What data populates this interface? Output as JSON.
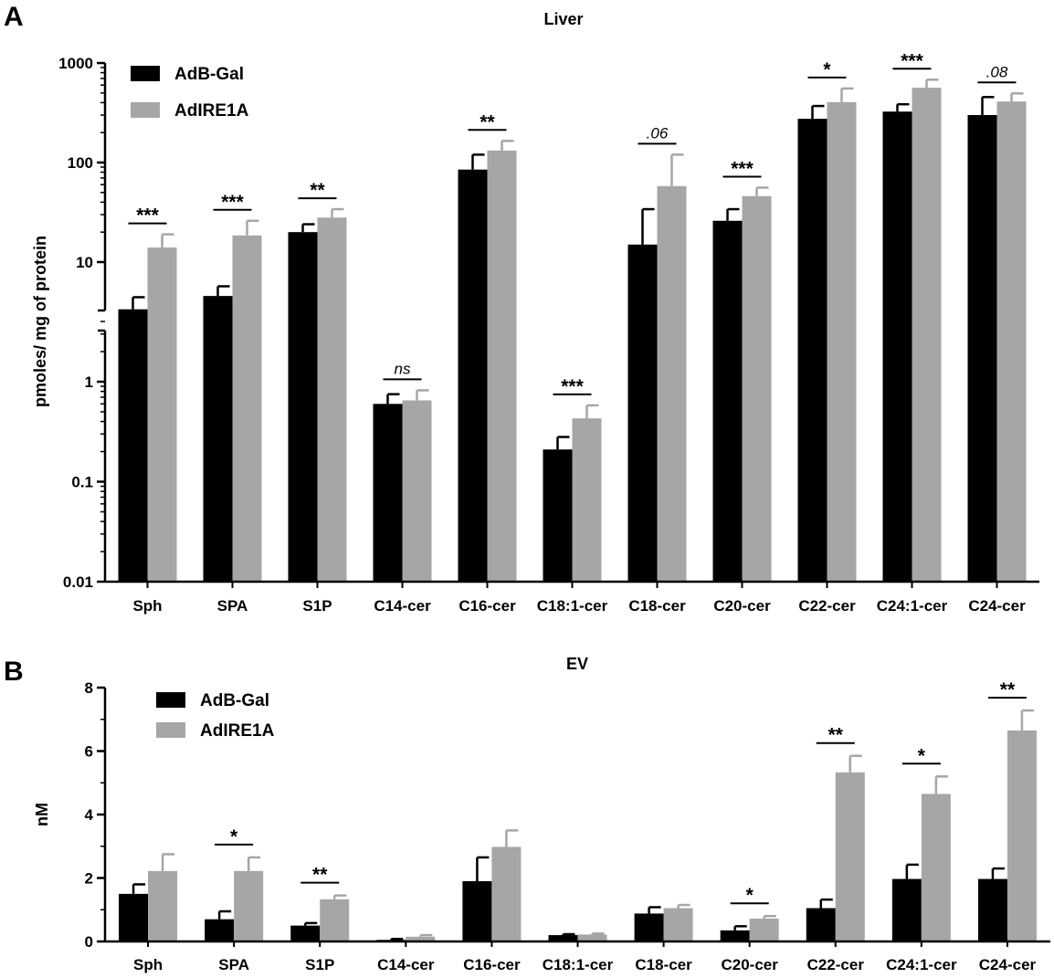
{
  "chart_data": [
    {
      "panel": "A",
      "type": "bar",
      "title": "Liver",
      "ylabel": "pmoles/ mg of protein",
      "yscale": "log",
      "ylim": [
        0.01,
        1000
      ],
      "yticks": [
        "1000",
        "100",
        "10",
        "1",
        "0.1",
        "0.01"
      ],
      "categories": [
        "Sph",
        "SPA",
        "S1P",
        "C14-cer",
        "C16-cer",
        "C18:1-cer",
        "C18-cer",
        "C20-cer",
        "C22-cer",
        "C24:1-cer",
        "C24-cer"
      ],
      "series": [
        {
          "name": "AdB-Gal",
          "color": "#000000",
          "values": [
            5.3,
            7.2,
            20,
            0.6,
            85,
            0.21,
            15,
            26,
            275,
            325,
            300
          ],
          "errors": [
            7.0,
            9.0,
            24,
            0.75,
            120,
            0.28,
            34,
            34,
            370,
            385,
            455
          ]
        },
        {
          "name": "AdIRE1A",
          "color": "#a6a6a6",
          "values": [
            14,
            18.5,
            28,
            0.65,
            132,
            0.43,
            58,
            46,
            405,
            565,
            410
          ],
          "errors": [
            19,
            26,
            34,
            0.82,
            165,
            0.58,
            120,
            56,
            555,
            680,
            495
          ]
        }
      ],
      "significance": [
        "***",
        "***",
        "**",
        "ns",
        "**",
        "***",
        ".06",
        "***",
        "*",
        "***",
        ".08"
      ],
      "italic_significance": [
        "ns",
        ".06",
        ".08"
      ],
      "legend_position": "top-left",
      "axis_break": true
    },
    {
      "panel": "B",
      "type": "bar",
      "title": "EV",
      "ylabel": "nM",
      "yscale": "linear",
      "ylim": [
        0,
        8
      ],
      "yticks": [
        "0",
        "2",
        "4",
        "6",
        "8"
      ],
      "categories": [
        "Sph",
        "SPA",
        "S1P",
        "C14-cer",
        "C16-cer",
        "C18:1-cer",
        "C18-cer",
        "C20-cer",
        "C22-cer",
        "C24:1-cer",
        "C24-cer"
      ],
      "series": [
        {
          "name": "AdB-Gal",
          "color": "#000000",
          "values": [
            1.5,
            0.7,
            0.5,
            0.05,
            1.9,
            0.2,
            0.88,
            0.35,
            1.05,
            1.97,
            1.97
          ],
          "errors": [
            1.8,
            0.95,
            0.58,
            0.08,
            2.65,
            0.23,
            1.08,
            0.48,
            1.32,
            2.42,
            2.3
          ]
        },
        {
          "name": "AdIRE1A",
          "color": "#a6a6a6",
          "values": [
            2.22,
            2.22,
            1.33,
            0.15,
            2.98,
            0.22,
            1.05,
            0.72,
            5.33,
            4.65,
            6.65
          ],
          "errors": [
            2.75,
            2.65,
            1.45,
            0.2,
            3.5,
            0.25,
            1.15,
            0.8,
            5.85,
            5.2,
            7.28
          ]
        }
      ],
      "significance": [
        "",
        "*",
        "**",
        "",
        "",
        "",
        "",
        "*",
        "**",
        "*",
        "**"
      ],
      "legend_position": "top-left"
    }
  ],
  "panel_labels": {
    "a": "A",
    "b": "B"
  }
}
